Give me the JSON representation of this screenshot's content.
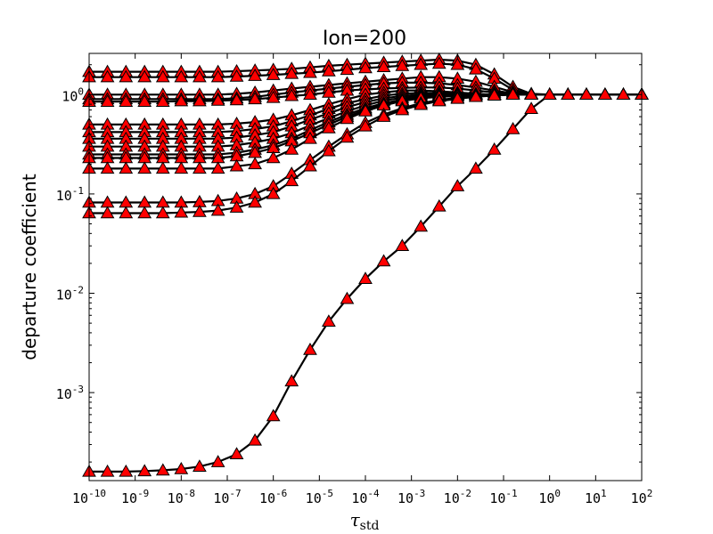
{
  "chart_data": {
    "type": "line",
    "title": "Ion=200",
    "xlabel": "τ",
    "xlabel_subscript": "std",
    "ylabel": "departure coefficient",
    "xscale": "log",
    "yscale": "log",
    "xlim": [
      1e-10,
      100
    ],
    "ylim": [
      0.00013,
      2.6
    ],
    "x_ticks": [
      {
        "base": "10",
        "exp": "-10",
        "value": 1e-10
      },
      {
        "base": "10",
        "exp": "-9",
        "value": 1e-09
      },
      {
        "base": "10",
        "exp": "-8",
        "value": 1e-08
      },
      {
        "base": "10",
        "exp": "-7",
        "value": 1e-07
      },
      {
        "base": "10",
        "exp": "-6",
        "value": 1e-06
      },
      {
        "base": "10",
        "exp": "-5",
        "value": 1e-05
      },
      {
        "base": "10",
        "exp": "-4",
        "value": 0.0001
      },
      {
        "base": "10",
        "exp": "-3",
        "value": 0.001
      },
      {
        "base": "10",
        "exp": "-2",
        "value": 0.01
      },
      {
        "base": "10",
        "exp": "-1",
        "value": 0.1
      },
      {
        "base": "10",
        "exp": "0",
        "value": 1
      },
      {
        "base": "10",
        "exp": "1",
        "value": 10
      },
      {
        "base": "10",
        "exp": "2",
        "value": 100
      }
    ],
    "y_ticks": [
      {
        "base": "10",
        "exp": "-3",
        "value": 0.001
      },
      {
        "base": "10",
        "exp": "-2",
        "value": 0.01
      },
      {
        "base": "10",
        "exp": "-1",
        "value": 0.1
      },
      {
        "base": "10",
        "exp": "0",
        "value": 1
      }
    ],
    "grid": false,
    "legend": "none",
    "marker": "triangle",
    "marker_color": "#ff0000",
    "line_color": "#000000",
    "x": [
      1e-10,
      2.5e-10,
      6.3e-10,
      1.6e-09,
      4e-09,
      1e-08,
      2.5e-08,
      6.3e-08,
      1.6e-07,
      4e-07,
      1e-06,
      2.5e-06,
      6.3e-06,
      1.6e-05,
      4e-05,
      0.0001,
      0.00025,
      0.00063,
      0.0016,
      0.004,
      0.01,
      0.025,
      0.063,
      0.16,
      0.4,
      1,
      2.5,
      6.3,
      16,
      40,
      100
    ],
    "series": [
      {
        "values": [
          1.7,
          1.7,
          1.7,
          1.7,
          1.7,
          1.7,
          1.7,
          1.7,
          1.72,
          1.75,
          1.78,
          1.82,
          1.88,
          1.95,
          2.0,
          2.05,
          2.1,
          2.15,
          2.2,
          2.25,
          2.2,
          2.0,
          1.6,
          1.2,
          1.02,
          1.0,
          1.0,
          1.0,
          1.0,
          1.0,
          1.0
        ]
      },
      {
        "values": [
          1.5,
          1.5,
          1.5,
          1.5,
          1.5,
          1.5,
          1.5,
          1.5,
          1.52,
          1.55,
          1.58,
          1.62,
          1.66,
          1.72,
          1.78,
          1.85,
          1.9,
          1.95,
          2.0,
          2.05,
          2.0,
          1.8,
          1.45,
          1.12,
          1.01,
          1.0,
          1.0,
          1.0,
          1.0,
          1.0,
          1.0
        ]
      },
      {
        "values": [
          1.0,
          1.0,
          1.0,
          1.0,
          1.0,
          1.0,
          1.0,
          1.0,
          1.02,
          1.05,
          1.1,
          1.15,
          1.2,
          1.25,
          1.3,
          1.35,
          1.4,
          1.45,
          1.5,
          1.5,
          1.45,
          1.35,
          1.2,
          1.06,
          1.0,
          1.0,
          1.0,
          1.0,
          1.0,
          1.0,
          1.0
        ]
      },
      {
        "values": [
          0.9,
          0.9,
          0.9,
          0.9,
          0.9,
          0.9,
          0.9,
          0.9,
          0.92,
          0.95,
          1.0,
          1.05,
          1.1,
          1.15,
          1.2,
          1.25,
          1.3,
          1.32,
          1.32,
          1.3,
          1.25,
          1.18,
          1.1,
          1.03,
          1.0,
          1.0,
          1.0,
          1.0,
          1.0,
          1.0,
          1.0
        ]
      },
      {
        "values": [
          0.85,
          0.85,
          0.85,
          0.85,
          0.85,
          0.86,
          0.86,
          0.87,
          0.88,
          0.9,
          0.93,
          0.97,
          1.0,
          1.05,
          1.1,
          1.13,
          1.15,
          1.17,
          1.18,
          1.18,
          1.15,
          1.1,
          1.05,
          1.01,
          1.0,
          1.0,
          1.0,
          1.0,
          1.0,
          1.0,
          1.0
        ]
      },
      {
        "values": [
          0.5,
          0.5,
          0.5,
          0.5,
          0.5,
          0.5,
          0.5,
          0.5,
          0.51,
          0.53,
          0.56,
          0.62,
          0.7,
          0.8,
          0.9,
          1.0,
          1.05,
          1.1,
          1.1,
          1.08,
          1.05,
          1.02,
          1.0,
          1.0,
          1.0,
          1.0,
          1.0,
          1.0,
          1.0,
          1.0,
          1.0
        ]
      },
      {
        "values": [
          0.42,
          0.42,
          0.42,
          0.42,
          0.42,
          0.42,
          0.42,
          0.42,
          0.43,
          0.45,
          0.48,
          0.54,
          0.62,
          0.72,
          0.82,
          0.9,
          0.98,
          1.02,
          1.04,
          1.03,
          1.02,
          1.01,
          1.0,
          1.0,
          1.0,
          1.0,
          1.0,
          1.0,
          1.0,
          1.0,
          1.0
        ]
      },
      {
        "values": [
          0.36,
          0.36,
          0.36,
          0.36,
          0.36,
          0.36,
          0.36,
          0.36,
          0.37,
          0.39,
          0.42,
          0.48,
          0.56,
          0.65,
          0.75,
          0.84,
          0.92,
          0.97,
          1.0,
          1.01,
          1.01,
          1.0,
          1.0,
          1.0,
          1.0,
          1.0,
          1.0,
          1.0,
          1.0,
          1.0,
          1.0
        ]
      },
      {
        "values": [
          0.3,
          0.3,
          0.3,
          0.3,
          0.3,
          0.3,
          0.3,
          0.3,
          0.31,
          0.33,
          0.36,
          0.41,
          0.49,
          0.58,
          0.68,
          0.78,
          0.87,
          0.93,
          0.97,
          0.99,
          1.0,
          1.0,
          1.0,
          1.0,
          1.0,
          1.0,
          1.0,
          1.0,
          1.0,
          1.0,
          1.0
        ]
      },
      {
        "values": [
          0.25,
          0.25,
          0.25,
          0.25,
          0.25,
          0.25,
          0.25,
          0.25,
          0.26,
          0.28,
          0.31,
          0.36,
          0.44,
          0.53,
          0.63,
          0.73,
          0.82,
          0.89,
          0.94,
          0.97,
          0.99,
          1.0,
          1.0,
          1.0,
          1.0,
          1.0,
          1.0,
          1.0,
          1.0,
          1.0,
          1.0
        ]
      },
      {
        "values": [
          0.23,
          0.23,
          0.23,
          0.23,
          0.23,
          0.23,
          0.23,
          0.23,
          0.24,
          0.26,
          0.29,
          0.34,
          0.41,
          0.5,
          0.6,
          0.7,
          0.8,
          0.87,
          0.93,
          0.96,
          0.98,
          0.99,
          1.0,
          1.0,
          1.0,
          1.0,
          1.0,
          1.0,
          1.0,
          1.0,
          1.0
        ]
      },
      {
        "values": [
          0.18,
          0.18,
          0.18,
          0.18,
          0.18,
          0.18,
          0.18,
          0.18,
          0.19,
          0.2,
          0.23,
          0.28,
          0.36,
          0.46,
          0.57,
          0.68,
          0.78,
          0.86,
          0.92,
          0.95,
          0.97,
          0.99,
          1.0,
          1.0,
          1.0,
          1.0,
          1.0,
          1.0,
          1.0,
          1.0,
          1.0
        ]
      },
      {
        "values": [
          0.082,
          0.082,
          0.082,
          0.082,
          0.082,
          0.082,
          0.083,
          0.085,
          0.09,
          0.1,
          0.12,
          0.16,
          0.22,
          0.3,
          0.4,
          0.52,
          0.63,
          0.73,
          0.82,
          0.88,
          0.93,
          0.96,
          0.98,
          1.0,
          1.0,
          1.0,
          1.0,
          1.0,
          1.0,
          1.0,
          1.0
        ]
      },
      {
        "values": [
          0.064,
          0.064,
          0.064,
          0.064,
          0.064,
          0.065,
          0.066,
          0.068,
          0.073,
          0.082,
          0.1,
          0.135,
          0.19,
          0.27,
          0.37,
          0.48,
          0.6,
          0.7,
          0.79,
          0.86,
          0.91,
          0.95,
          0.98,
          1.0,
          1.0,
          1.0,
          1.0,
          1.0,
          1.0,
          1.0,
          1.0
        ]
      },
      {
        "values": [
          0.00016,
          0.00016,
          0.00016,
          0.000162,
          0.000165,
          0.00017,
          0.00018,
          0.0002,
          0.00024,
          0.00033,
          0.00058,
          0.0013,
          0.0027,
          0.0052,
          0.0088,
          0.014,
          0.021,
          0.03,
          0.047,
          0.075,
          0.12,
          0.18,
          0.28,
          0.45,
          0.72,
          1.0,
          1.0,
          1.0,
          1.0,
          1.0,
          1.0
        ]
      }
    ]
  }
}
